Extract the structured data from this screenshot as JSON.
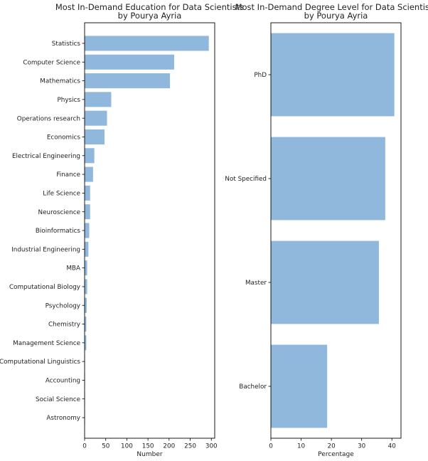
{
  "colors": {
    "bar": "#8fb8dc",
    "axis": "#000000",
    "text": "#222222"
  },
  "chart_data": [
    {
      "type": "bar",
      "orientation": "horizontal",
      "title": "Most In-Demand Education for Data Scientists\nby Pourya Ayria",
      "xlabel": "Number",
      "ylabel": "",
      "xlim": [
        0,
        308
      ],
      "xticks": [
        0,
        50,
        100,
        150,
        200,
        250,
        300
      ],
      "categories": [
        "Statistics",
        "Computer Science",
        "Mathematics",
        "Physics",
        "Operations research",
        "Economics",
        "Electrical Engineering",
        "Finance",
        "Life Science",
        "Neuroscience",
        "Bioinformatics",
        "Industrial Engineering",
        "MBA",
        "Computational Biology",
        "Psychology",
        "Chemistry",
        "Management Science",
        "Computational Linguistics",
        "Accounting",
        "Social Science",
        "Astronomy"
      ],
      "values": [
        294,
        212,
        202,
        63,
        53,
        47,
        23,
        20,
        13,
        13,
        11,
        9,
        6,
        6,
        5,
        4,
        4,
        1,
        1,
        1,
        1
      ],
      "grid": false,
      "legend": false
    },
    {
      "type": "bar",
      "orientation": "horizontal",
      "title": "Most In-Demand Degree Level for Data Scientists\nby Pourya Ayria",
      "xlabel": "Percentage",
      "ylabel": "",
      "xlim": [
        0,
        43
      ],
      "xticks": [
        0,
        10,
        20,
        30,
        40
      ],
      "categories": [
        "PhD",
        "Not Specified",
        "Master",
        "Bachelor"
      ],
      "values": [
        40.8,
        37.8,
        35.7,
        18.6
      ],
      "grid": false,
      "legend": false
    }
  ]
}
